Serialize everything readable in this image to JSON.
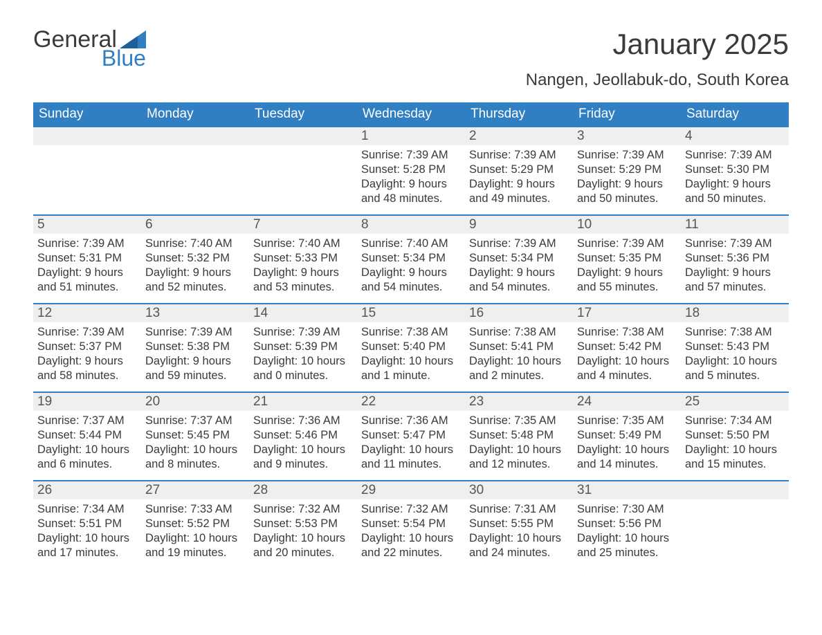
{
  "logo": {
    "text1": "General",
    "text2": "Blue",
    "flag_color": "#2f7fc2",
    "text1_color": "#3a3a3a",
    "text2_color": "#2f7fc2"
  },
  "header": {
    "title": "January 2025",
    "location": "Nangen, Jeollabuk-do, South Korea"
  },
  "styling": {
    "header_bg": "#2f7fc2",
    "header_text": "#ffffff",
    "row_accent": "#2f7fc2",
    "daynum_bg": "#efefef",
    "body_text": "#3a3a3a",
    "page_bg": "#ffffff",
    "font_family": "Arial Narrow",
    "title_fontsize_pt": 32,
    "location_fontsize_pt": 18,
    "th_fontsize_pt": 14,
    "cell_fontsize_pt": 12
  },
  "weekdays": [
    "Sunday",
    "Monday",
    "Tuesday",
    "Wednesday",
    "Thursday",
    "Friday",
    "Saturday"
  ],
  "weeks": [
    [
      null,
      null,
      null,
      {
        "d": "1",
        "sr": "Sunrise: 7:39 AM",
        "ss": "Sunset: 5:28 PM",
        "dl1": "Daylight: 9 hours",
        "dl2": "and 48 minutes."
      },
      {
        "d": "2",
        "sr": "Sunrise: 7:39 AM",
        "ss": "Sunset: 5:29 PM",
        "dl1": "Daylight: 9 hours",
        "dl2": "and 49 minutes."
      },
      {
        "d": "3",
        "sr": "Sunrise: 7:39 AM",
        "ss": "Sunset: 5:29 PM",
        "dl1": "Daylight: 9 hours",
        "dl2": "and 50 minutes."
      },
      {
        "d": "4",
        "sr": "Sunrise: 7:39 AM",
        "ss": "Sunset: 5:30 PM",
        "dl1": "Daylight: 9 hours",
        "dl2": "and 50 minutes."
      }
    ],
    [
      {
        "d": "5",
        "sr": "Sunrise: 7:39 AM",
        "ss": "Sunset: 5:31 PM",
        "dl1": "Daylight: 9 hours",
        "dl2": "and 51 minutes."
      },
      {
        "d": "6",
        "sr": "Sunrise: 7:40 AM",
        "ss": "Sunset: 5:32 PM",
        "dl1": "Daylight: 9 hours",
        "dl2": "and 52 minutes."
      },
      {
        "d": "7",
        "sr": "Sunrise: 7:40 AM",
        "ss": "Sunset: 5:33 PM",
        "dl1": "Daylight: 9 hours",
        "dl2": "and 53 minutes."
      },
      {
        "d": "8",
        "sr": "Sunrise: 7:40 AM",
        "ss": "Sunset: 5:34 PM",
        "dl1": "Daylight: 9 hours",
        "dl2": "and 54 minutes."
      },
      {
        "d": "9",
        "sr": "Sunrise: 7:39 AM",
        "ss": "Sunset: 5:34 PM",
        "dl1": "Daylight: 9 hours",
        "dl2": "and 54 minutes."
      },
      {
        "d": "10",
        "sr": "Sunrise: 7:39 AM",
        "ss": "Sunset: 5:35 PM",
        "dl1": "Daylight: 9 hours",
        "dl2": "and 55 minutes."
      },
      {
        "d": "11",
        "sr": "Sunrise: 7:39 AM",
        "ss": "Sunset: 5:36 PM",
        "dl1": "Daylight: 9 hours",
        "dl2": "and 57 minutes."
      }
    ],
    [
      {
        "d": "12",
        "sr": "Sunrise: 7:39 AM",
        "ss": "Sunset: 5:37 PM",
        "dl1": "Daylight: 9 hours",
        "dl2": "and 58 minutes."
      },
      {
        "d": "13",
        "sr": "Sunrise: 7:39 AM",
        "ss": "Sunset: 5:38 PM",
        "dl1": "Daylight: 9 hours",
        "dl2": "and 59 minutes."
      },
      {
        "d": "14",
        "sr": "Sunrise: 7:39 AM",
        "ss": "Sunset: 5:39 PM",
        "dl1": "Daylight: 10 hours",
        "dl2": "and 0 minutes."
      },
      {
        "d": "15",
        "sr": "Sunrise: 7:38 AM",
        "ss": "Sunset: 5:40 PM",
        "dl1": "Daylight: 10 hours",
        "dl2": "and 1 minute."
      },
      {
        "d": "16",
        "sr": "Sunrise: 7:38 AM",
        "ss": "Sunset: 5:41 PM",
        "dl1": "Daylight: 10 hours",
        "dl2": "and 2 minutes."
      },
      {
        "d": "17",
        "sr": "Sunrise: 7:38 AM",
        "ss": "Sunset: 5:42 PM",
        "dl1": "Daylight: 10 hours",
        "dl2": "and 4 minutes."
      },
      {
        "d": "18",
        "sr": "Sunrise: 7:38 AM",
        "ss": "Sunset: 5:43 PM",
        "dl1": "Daylight: 10 hours",
        "dl2": "and 5 minutes."
      }
    ],
    [
      {
        "d": "19",
        "sr": "Sunrise: 7:37 AM",
        "ss": "Sunset: 5:44 PM",
        "dl1": "Daylight: 10 hours",
        "dl2": "and 6 minutes."
      },
      {
        "d": "20",
        "sr": "Sunrise: 7:37 AM",
        "ss": "Sunset: 5:45 PM",
        "dl1": "Daylight: 10 hours",
        "dl2": "and 8 minutes."
      },
      {
        "d": "21",
        "sr": "Sunrise: 7:36 AM",
        "ss": "Sunset: 5:46 PM",
        "dl1": "Daylight: 10 hours",
        "dl2": "and 9 minutes."
      },
      {
        "d": "22",
        "sr": "Sunrise: 7:36 AM",
        "ss": "Sunset: 5:47 PM",
        "dl1": "Daylight: 10 hours",
        "dl2": "and 11 minutes."
      },
      {
        "d": "23",
        "sr": "Sunrise: 7:35 AM",
        "ss": "Sunset: 5:48 PM",
        "dl1": "Daylight: 10 hours",
        "dl2": "and 12 minutes."
      },
      {
        "d": "24",
        "sr": "Sunrise: 7:35 AM",
        "ss": "Sunset: 5:49 PM",
        "dl1": "Daylight: 10 hours",
        "dl2": "and 14 minutes."
      },
      {
        "d": "25",
        "sr": "Sunrise: 7:34 AM",
        "ss": "Sunset: 5:50 PM",
        "dl1": "Daylight: 10 hours",
        "dl2": "and 15 minutes."
      }
    ],
    [
      {
        "d": "26",
        "sr": "Sunrise: 7:34 AM",
        "ss": "Sunset: 5:51 PM",
        "dl1": "Daylight: 10 hours",
        "dl2": "and 17 minutes."
      },
      {
        "d": "27",
        "sr": "Sunrise: 7:33 AM",
        "ss": "Sunset: 5:52 PM",
        "dl1": "Daylight: 10 hours",
        "dl2": "and 19 minutes."
      },
      {
        "d": "28",
        "sr": "Sunrise: 7:32 AM",
        "ss": "Sunset: 5:53 PM",
        "dl1": "Daylight: 10 hours",
        "dl2": "and 20 minutes."
      },
      {
        "d": "29",
        "sr": "Sunrise: 7:32 AM",
        "ss": "Sunset: 5:54 PM",
        "dl1": "Daylight: 10 hours",
        "dl2": "and 22 minutes."
      },
      {
        "d": "30",
        "sr": "Sunrise: 7:31 AM",
        "ss": "Sunset: 5:55 PM",
        "dl1": "Daylight: 10 hours",
        "dl2": "and 24 minutes."
      },
      {
        "d": "31",
        "sr": "Sunrise: 7:30 AM",
        "ss": "Sunset: 5:56 PM",
        "dl1": "Daylight: 10 hours",
        "dl2": "and 25 minutes."
      },
      null
    ]
  ]
}
